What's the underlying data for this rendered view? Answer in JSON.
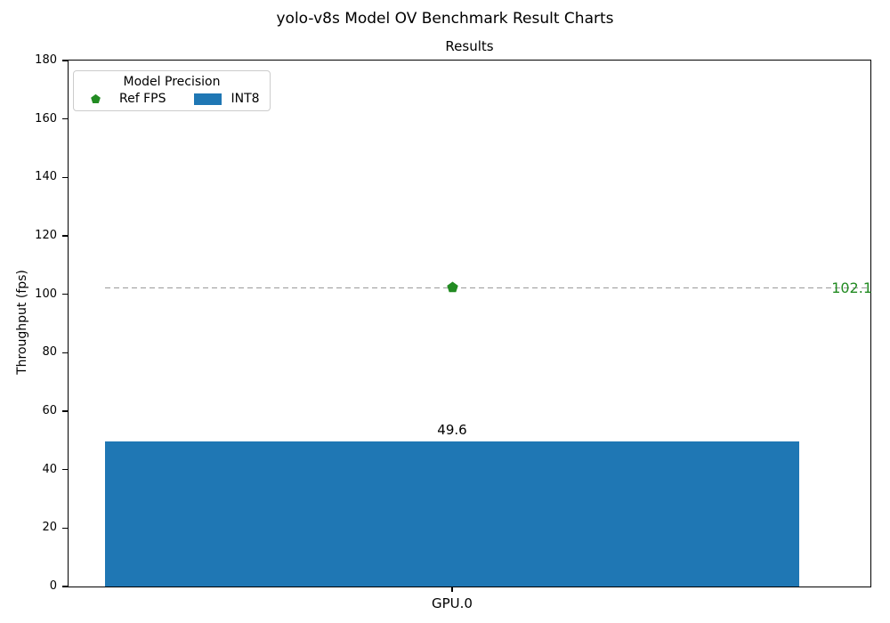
{
  "figure": {
    "title": "yolo-v8s Model OV Benchmark Result Charts"
  },
  "chart_data": {
    "type": "bar",
    "title": "Results",
    "ylabel": "Throughput (fps)",
    "xlabel": "",
    "categories": [
      "GPU.0"
    ],
    "series": [
      {
        "name": "INT8",
        "type": "bar",
        "values": [
          49.6
        ],
        "color": "#1f77b4"
      },
      {
        "name": "Ref FPS",
        "type": "scatter",
        "marker": "pentagon",
        "values": [
          102.1
        ],
        "color": "#228B22"
      }
    ],
    "bar_labels": [
      "49.6"
    ],
    "ref_line": {
      "y": 102.1,
      "label": "102.1",
      "style": "dashed",
      "color": "#999999",
      "label_color": "#228B22"
    },
    "ylim": [
      0,
      180
    ],
    "yticks": [
      0,
      20,
      40,
      60,
      80,
      100,
      120,
      140,
      160,
      180
    ],
    "grid": false,
    "legend": {
      "title": "Model Precision",
      "position": "upper left",
      "entries": [
        {
          "label": "Ref FPS",
          "swatch": "pentagon",
          "color": "#228B22"
        },
        {
          "label": "INT8",
          "swatch": "rect",
          "color": "#1f77b4"
        }
      ]
    }
  }
}
